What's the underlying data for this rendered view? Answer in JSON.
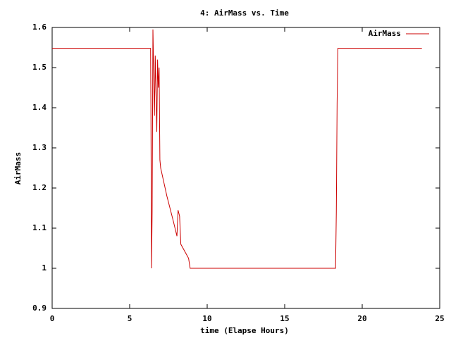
{
  "chart_data": {
    "type": "line",
    "title": "4: AirMass vs. Time",
    "xlabel": "time (Elapse Hours)",
    "ylabel": "AirMass",
    "x": [
      0,
      6.35,
      6.37,
      6.41,
      6.45,
      6.5,
      6.6,
      6.65,
      6.75,
      6.8,
      6.85,
      6.9,
      6.95,
      7.0,
      7.4,
      7.8,
      8.05,
      8.12,
      8.22,
      8.3,
      8.8,
      8.9,
      18.28,
      18.33,
      18.38,
      18.43,
      23.85
    ],
    "series": [
      {
        "name": "AirMass",
        "color": "#cc0000",
        "values": [
          1.548,
          1.548,
          1.41,
          1.0,
          1.14,
          1.595,
          1.38,
          1.53,
          1.34,
          1.52,
          1.45,
          1.5,
          1.27,
          1.25,
          1.18,
          1.12,
          1.08,
          1.145,
          1.13,
          1.06,
          1.025,
          1.0,
          1.0,
          1.14,
          1.41,
          1.548,
          1.548
        ]
      }
    ],
    "xlim": [
      0,
      25
    ],
    "xticks": [
      0,
      5,
      10,
      15,
      20,
      25
    ],
    "ylim": [
      0.9,
      1.6
    ],
    "yticks": [
      0.9,
      1,
      1.1,
      1.2,
      1.3,
      1.4,
      1.5,
      1.6
    ],
    "legend": "upper right",
    "grid": false
  }
}
